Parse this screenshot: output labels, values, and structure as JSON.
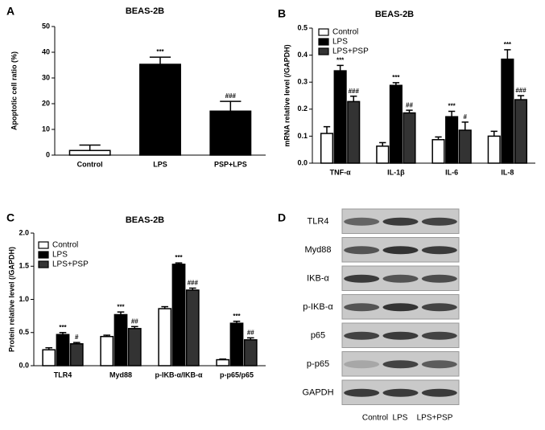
{
  "chart_data": [
    {
      "type": "bar",
      "panel": "A",
      "title": "BEAS-2B",
      "y_label": "Apoptotic cell ratio (%)",
      "categories": [
        "Control",
        "LPS",
        "PSP+LPS"
      ],
      "values": [
        1.8,
        35.3,
        17.1
      ],
      "error": [
        2.1,
        2.8,
        3.8
      ],
      "colors": [
        "#ffffff",
        "#000000",
        "#000000"
      ],
      "annotations": [
        null,
        "***",
        "###"
      ],
      "ylim": [
        0,
        50
      ],
      "yticks": [
        0,
        10,
        20,
        30,
        40,
        50
      ]
    },
    {
      "type": "bar",
      "panel": "B",
      "title": "BEAS-2B",
      "y_label": "mRNA relative level (/GAPDH)",
      "categories": [
        "TNF-α",
        "IL-1β",
        "IL-6",
        "IL-8"
      ],
      "series": [
        {
          "name": "Control",
          "color": "#ffffff",
          "values": [
            0.11,
            0.063,
            0.087,
            0.1
          ],
          "error": [
            0.025,
            0.013,
            0.01,
            0.018
          ],
          "annotations": [
            null,
            null,
            null,
            null
          ]
        },
        {
          "name": "LPS",
          "color": "#000000",
          "values": [
            0.342,
            0.288,
            0.172,
            0.385
          ],
          "error": [
            0.02,
            0.01,
            0.02,
            0.035
          ],
          "annotations": [
            "***",
            "***",
            "***",
            "***"
          ]
        },
        {
          "name": "LPS+PSP",
          "color": "#333333",
          "values": [
            0.228,
            0.186,
            0.122,
            0.235
          ],
          "error": [
            0.02,
            0.01,
            0.03,
            0.015
          ],
          "annotations": [
            "###",
            "##",
            "#",
            "###"
          ]
        }
      ],
      "ylim": [
        0,
        0.5
      ],
      "yticks": [
        {
          "value": 0,
          "label": "0.0"
        },
        0.1,
        0.2,
        0.3,
        0.4,
        0.5
      ],
      "legend": "upper-left"
    },
    {
      "type": "bar",
      "panel": "C",
      "title": "BEAS-2B",
      "y_label": "Protein relative level (/GAPDH)",
      "categories": [
        "TLR4",
        "Myd88",
        "p-IKB-α/IKB-α",
        "p-p65/p65"
      ],
      "series": [
        {
          "name": "Control",
          "color": "#ffffff",
          "values": [
            0.24,
            0.44,
            0.86,
            0.09
          ],
          "error": [
            0.03,
            0.02,
            0.03,
            0.01
          ],
          "annotations": [
            null,
            null,
            null,
            null
          ]
        },
        {
          "name": "LPS",
          "color": "#000000",
          "values": [
            0.47,
            0.77,
            1.53,
            0.64
          ],
          "error": [
            0.03,
            0.04,
            0.02,
            0.03
          ],
          "annotations": [
            "***",
            "***",
            "***",
            "***"
          ]
        },
        {
          "name": "LPS+PSP",
          "color": "#333333",
          "values": [
            0.33,
            0.56,
            1.14,
            0.39
          ],
          "error": [
            0.02,
            0.03,
            0.03,
            0.03
          ],
          "annotations": [
            "#",
            "##",
            "###",
            "##"
          ]
        }
      ],
      "ylim": [
        0,
        2.0
      ],
      "yticks": [
        {
          "value": 0,
          "label": "0.0"
        },
        0.5,
        {
          "value": 1,
          "label": "1.0"
        },
        1.5,
        {
          "value": 2,
          "label": "2.0"
        }
      ],
      "legend": "upper-left"
    }
  ],
  "blot": {
    "panel": "D",
    "rows": [
      "TLR4",
      "Myd88",
      "IKB-α",
      "p-IKB-α",
      "p65",
      "p-p65",
      "GAPDH"
    ],
    "lanes": [
      "Control",
      "LPS",
      "LPS+PSP"
    ]
  }
}
